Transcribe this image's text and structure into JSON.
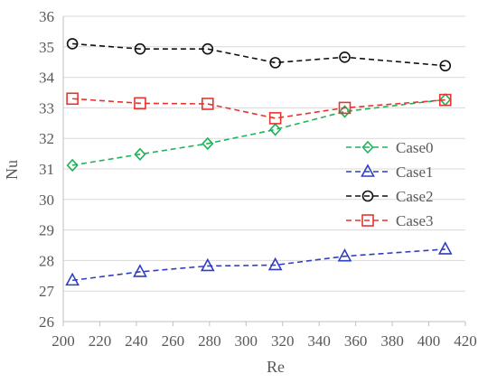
{
  "chart_data": {
    "type": "line",
    "xlabel": "Re",
    "ylabel": "Nu",
    "xlim": [
      200,
      420
    ],
    "ylim": [
      26,
      36
    ],
    "x_ticks": [
      "200",
      "220",
      "240",
      "260",
      "280",
      "300",
      "320",
      "340",
      "360",
      "380",
      "400",
      "420"
    ],
    "y_ticks": [
      "26",
      "27",
      "28",
      "29",
      "30",
      "31",
      "32",
      "33",
      "34",
      "35",
      "36"
    ],
    "grid": "horizontal",
    "legend_position": "right",
    "series": [
      {
        "name": "Case0",
        "color": "#1fb25a",
        "marker": "diamond",
        "x": [
          205,
          242,
          279,
          316,
          354,
          409
        ],
        "y": [
          31.12,
          31.48,
          31.83,
          32.29,
          32.88,
          33.27
        ]
      },
      {
        "name": "Case1",
        "color": "#2f3fbf",
        "marker": "triangle",
        "x": [
          205,
          242,
          279,
          316,
          354,
          409
        ],
        "y": [
          27.35,
          27.63,
          27.82,
          27.85,
          28.14,
          28.37
        ]
      },
      {
        "name": "Case2",
        "color": "#111111",
        "marker": "circle",
        "x": [
          205,
          242,
          279,
          316,
          354,
          409
        ],
        "y": [
          35.1,
          34.93,
          34.93,
          34.48,
          34.66,
          34.38
        ]
      },
      {
        "name": "Case3",
        "color": "#e8342f",
        "marker": "square",
        "x": [
          205,
          242,
          279,
          316,
          354,
          409
        ],
        "y": [
          33.3,
          33.15,
          33.13,
          32.66,
          33.0,
          33.26
        ]
      }
    ]
  }
}
